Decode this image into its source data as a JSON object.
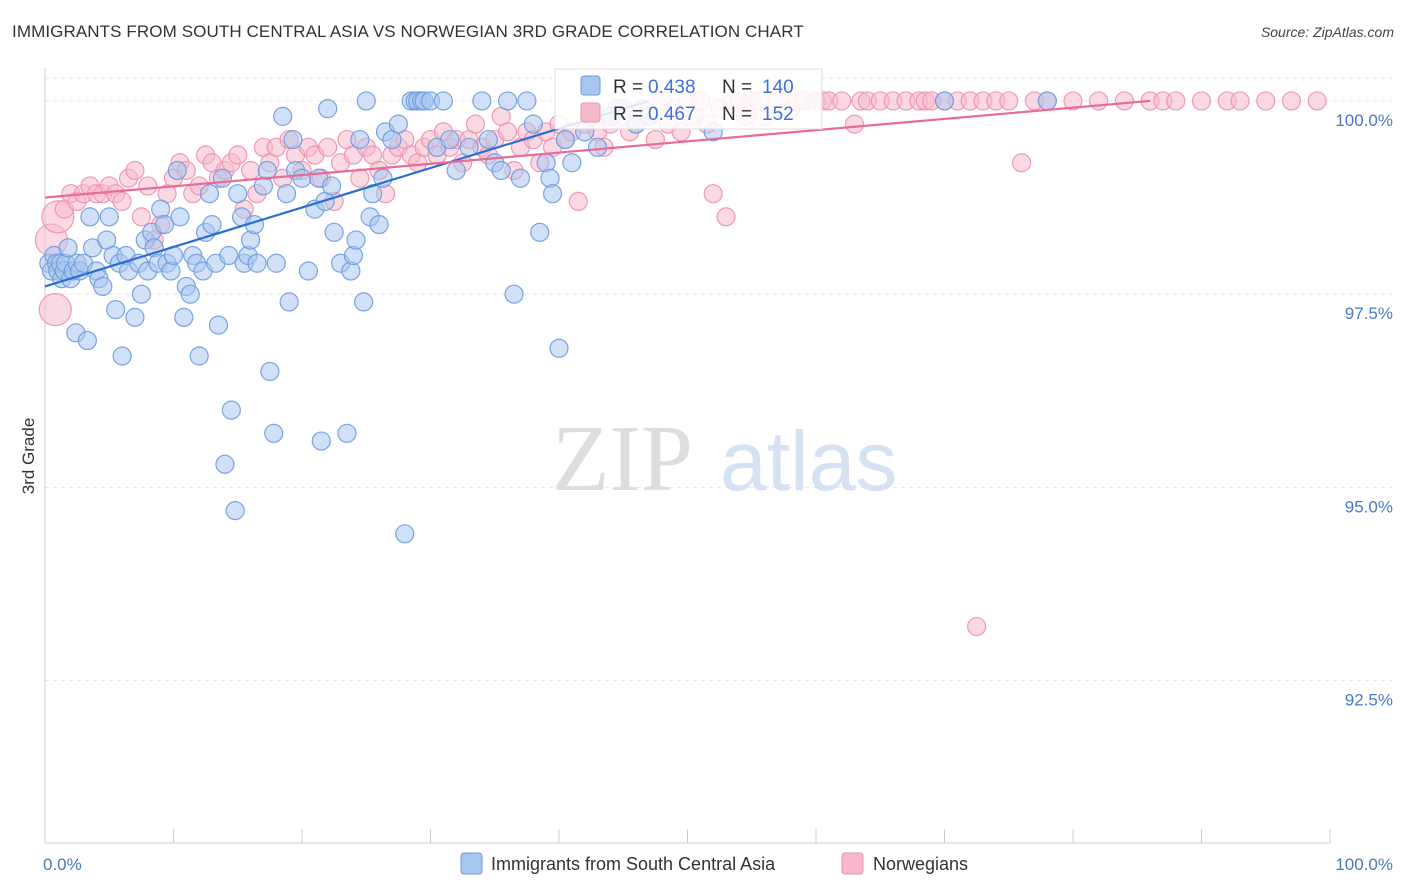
{
  "header": {
    "title": "IMMIGRANTS FROM SOUTH CENTRAL ASIA VS NORWEGIAN 3RD GRADE CORRELATION CHART",
    "source": "Source: ZipAtlas.com"
  },
  "watermark": {
    "zip": "ZIP",
    "atlas": "atlas"
  },
  "colors": {
    "blue_fill": "#a9c6ef",
    "blue_stroke": "#6b9ae0",
    "blue_line": "#2a6fd0",
    "pink_fill": "#f6b9cc",
    "pink_stroke": "#ee8fae",
    "pink_line": "#e86a95",
    "tick_text": "#4a78c6",
    "grid": "#e6e6e6"
  },
  "stats": {
    "r_label": "R =",
    "n_label": "N =",
    "blue": {
      "r": "0.438",
      "n": "140"
    },
    "pink": {
      "r": "0.467",
      "n": "152"
    }
  },
  "chart_data": {
    "type": "scatter",
    "title": "IMMIGRANTS FROM SOUTH CENTRAL ASIA VS NORWEGIAN 3RD GRADE CORRELATION CHART",
    "xlabel": "",
    "ylabel": "3rd Grade",
    "xlim": [
      0,
      100
    ],
    "ylim": [
      90.4,
      100.4
    ],
    "x_tick_labels": [
      {
        "value": 0,
        "label": "0.0%"
      },
      {
        "value": 100,
        "label": "100.0%"
      }
    ],
    "y_ticks": [
      {
        "value": 100.0,
        "label": "100.0%"
      },
      {
        "value": 97.5,
        "label": "97.5%"
      },
      {
        "value": 95.0,
        "label": "95.0%"
      },
      {
        "value": 92.5,
        "label": "92.5%"
      }
    ],
    "grid": true,
    "legend_position": "bottom",
    "series": [
      {
        "name": "Immigrants from South Central Asia",
        "color": "#6b9ae0",
        "trend": {
          "x": [
            0,
            47
          ],
          "y": [
            97.6,
            100.0
          ]
        },
        "points": [
          [
            0.3,
            97.9
          ],
          [
            0.5,
            97.8
          ],
          [
            0.7,
            98.0
          ],
          [
            0.9,
            97.9
          ],
          [
            1.0,
            97.8
          ],
          [
            1.2,
            97.9
          ],
          [
            1.3,
            97.7
          ],
          [
            1.5,
            97.8
          ],
          [
            1.6,
            97.9
          ],
          [
            1.8,
            98.1
          ],
          [
            2.0,
            97.7
          ],
          [
            2.2,
            97.8
          ],
          [
            2.4,
            97.0
          ],
          [
            2.5,
            97.9
          ],
          [
            2.7,
            97.8
          ],
          [
            3.0,
            97.9
          ],
          [
            3.3,
            96.9
          ],
          [
            3.5,
            98.5
          ],
          [
            3.7,
            98.1
          ],
          [
            4.0,
            97.8
          ],
          [
            4.2,
            97.7
          ],
          [
            4.5,
            97.6
          ],
          [
            4.8,
            98.2
          ],
          [
            5.0,
            98.5
          ],
          [
            5.3,
            98.0
          ],
          [
            5.5,
            97.3
          ],
          [
            5.8,
            97.9
          ],
          [
            6.0,
            96.7
          ],
          [
            6.3,
            98.0
          ],
          [
            6.5,
            97.8
          ],
          [
            7.0,
            97.2
          ],
          [
            7.3,
            97.9
          ],
          [
            7.5,
            97.5
          ],
          [
            7.8,
            98.2
          ],
          [
            8.0,
            97.8
          ],
          [
            8.3,
            98.3
          ],
          [
            8.5,
            98.1
          ],
          [
            8.8,
            97.9
          ],
          [
            9.0,
            98.6
          ],
          [
            9.3,
            98.4
          ],
          [
            9.5,
            97.9
          ],
          [
            9.8,
            97.8
          ],
          [
            10.0,
            98.0
          ],
          [
            10.3,
            99.1
          ],
          [
            10.5,
            98.5
          ],
          [
            10.8,
            97.2
          ],
          [
            11.0,
            97.6
          ],
          [
            11.3,
            97.5
          ],
          [
            11.5,
            98.0
          ],
          [
            11.8,
            97.9
          ],
          [
            12.0,
            96.7
          ],
          [
            12.3,
            97.8
          ],
          [
            12.5,
            98.3
          ],
          [
            12.8,
            98.8
          ],
          [
            13.0,
            98.4
          ],
          [
            13.3,
            97.9
          ],
          [
            13.5,
            97.1
          ],
          [
            13.8,
            99.0
          ],
          [
            14.0,
            95.3
          ],
          [
            14.3,
            98.0
          ],
          [
            14.5,
            96.0
          ],
          [
            14.8,
            94.7
          ],
          [
            15.0,
            98.8
          ],
          [
            15.3,
            98.5
          ],
          [
            15.5,
            97.9
          ],
          [
            15.8,
            98.0
          ],
          [
            16.0,
            98.2
          ],
          [
            16.3,
            98.4
          ],
          [
            16.5,
            97.9
          ],
          [
            17.0,
            98.9
          ],
          [
            17.3,
            99.1
          ],
          [
            17.5,
            96.5
          ],
          [
            17.8,
            95.7
          ],
          [
            18.0,
            97.9
          ],
          [
            18.5,
            99.8
          ],
          [
            18.8,
            98.8
          ],
          [
            19.0,
            97.4
          ],
          [
            19.3,
            99.5
          ],
          [
            19.5,
            99.1
          ],
          [
            20.0,
            99.0
          ],
          [
            20.5,
            97.8
          ],
          [
            21.0,
            98.6
          ],
          [
            21.3,
            99.0
          ],
          [
            21.5,
            95.6
          ],
          [
            21.8,
            98.7
          ],
          [
            22.0,
            99.9
          ],
          [
            22.3,
            98.9
          ],
          [
            22.5,
            98.3
          ],
          [
            23.0,
            97.9
          ],
          [
            23.5,
            95.7
          ],
          [
            23.8,
            97.8
          ],
          [
            24.0,
            98.0
          ],
          [
            24.2,
            98.2
          ],
          [
            24.5,
            99.5
          ],
          [
            24.8,
            97.4
          ],
          [
            25.0,
            100.0
          ],
          [
            25.3,
            98.5
          ],
          [
            25.5,
            98.8
          ],
          [
            26.0,
            98.4
          ],
          [
            26.3,
            99.0
          ],
          [
            26.5,
            99.6
          ],
          [
            27.0,
            99.5
          ],
          [
            27.5,
            99.7
          ],
          [
            28.0,
            94.4
          ],
          [
            28.5,
            100.0
          ],
          [
            28.8,
            100.0
          ],
          [
            29.0,
            100.0
          ],
          [
            29.3,
            100.0
          ],
          [
            29.5,
            100.0
          ],
          [
            30.0,
            100.0
          ],
          [
            30.5,
            99.4
          ],
          [
            31.0,
            100.0
          ],
          [
            31.5,
            99.5
          ],
          [
            32.0,
            99.1
          ],
          [
            33.0,
            99.4
          ],
          [
            34.0,
            100.0
          ],
          [
            34.5,
            99.5
          ],
          [
            35.0,
            99.2
          ],
          [
            35.5,
            99.1
          ],
          [
            36.0,
            100.0
          ],
          [
            36.5,
            97.5
          ],
          [
            37.0,
            99.0
          ],
          [
            37.5,
            100.0
          ],
          [
            38.0,
            99.7
          ],
          [
            38.5,
            98.3
          ],
          [
            39.0,
            99.2
          ],
          [
            39.3,
            99.0
          ],
          [
            39.5,
            98.8
          ],
          [
            40.0,
            96.8
          ],
          [
            40.5,
            99.5
          ],
          [
            41.0,
            99.2
          ],
          [
            42.0,
            99.6
          ],
          [
            43.0,
            99.4
          ],
          [
            44.0,
            99.8
          ],
          [
            45.0,
            99.9
          ],
          [
            46.0,
            99.7
          ],
          [
            47.0,
            99.8
          ],
          [
            52.0,
            99.6
          ],
          [
            70.0,
            100.0
          ],
          [
            78.0,
            100.0
          ]
        ]
      },
      {
        "name": "Norwegians",
        "color": "#ee8fae",
        "trend": {
          "x": [
            0,
            86
          ],
          "y": [
            98.75,
            100.0
          ]
        },
        "points": [
          [
            0.5,
            98.2
          ],
          [
            0.8,
            97.3
          ],
          [
            1.0,
            98.5
          ],
          [
            1.5,
            98.6
          ],
          [
            2.0,
            98.8
          ],
          [
            2.5,
            98.7
          ],
          [
            3.0,
            98.8
          ],
          [
            3.5,
            98.9
          ],
          [
            4.0,
            98.8
          ],
          [
            4.5,
            98.8
          ],
          [
            5.0,
            98.9
          ],
          [
            5.5,
            98.8
          ],
          [
            6.0,
            98.7
          ],
          [
            6.5,
            99.0
          ],
          [
            7.0,
            99.1
          ],
          [
            7.5,
            98.5
          ],
          [
            8.0,
            98.9
          ],
          [
            8.5,
            98.2
          ],
          [
            9.0,
            98.4
          ],
          [
            9.5,
            98.8
          ],
          [
            10.0,
            99.0
          ],
          [
            10.5,
            99.2
          ],
          [
            11.0,
            99.1
          ],
          [
            11.5,
            98.8
          ],
          [
            12.0,
            98.9
          ],
          [
            12.5,
            99.3
          ],
          [
            13.0,
            99.2
          ],
          [
            13.5,
            99.0
          ],
          [
            14.0,
            99.1
          ],
          [
            14.5,
            99.2
          ],
          [
            15.0,
            99.3
          ],
          [
            15.5,
            98.6
          ],
          [
            16.0,
            99.1
          ],
          [
            16.5,
            98.8
          ],
          [
            17.0,
            99.4
          ],
          [
            17.5,
            99.2
          ],
          [
            18.0,
            99.4
          ],
          [
            18.5,
            99.0
          ],
          [
            19.0,
            99.5
          ],
          [
            19.5,
            99.3
          ],
          [
            20.0,
            99.1
          ],
          [
            20.5,
            99.4
          ],
          [
            21.0,
            99.3
          ],
          [
            21.5,
            99.0
          ],
          [
            22.0,
            99.4
          ],
          [
            22.5,
            98.7
          ],
          [
            23.0,
            99.2
          ],
          [
            23.5,
            99.5
          ],
          [
            24.0,
            99.3
          ],
          [
            24.5,
            99.0
          ],
          [
            25.0,
            99.4
          ],
          [
            25.5,
            99.3
          ],
          [
            26.0,
            99.1
          ],
          [
            26.5,
            98.8
          ],
          [
            27.0,
            99.3
          ],
          [
            27.5,
            99.4
          ],
          [
            28.0,
            99.5
          ],
          [
            28.5,
            99.3
          ],
          [
            29.0,
            99.2
          ],
          [
            29.5,
            99.4
          ],
          [
            30.0,
            99.5
          ],
          [
            30.5,
            99.3
          ],
          [
            31.0,
            99.6
          ],
          [
            31.5,
            99.4
          ],
          [
            32.0,
            99.5
          ],
          [
            32.5,
            99.2
          ],
          [
            33.0,
            99.5
          ],
          [
            33.5,
            99.7
          ],
          [
            34.0,
            99.4
          ],
          [
            34.5,
            99.3
          ],
          [
            35.0,
            99.5
          ],
          [
            35.5,
            99.8
          ],
          [
            36.0,
            99.6
          ],
          [
            36.5,
            99.1
          ],
          [
            37.0,
            99.4
          ],
          [
            37.5,
            99.6
          ],
          [
            38.0,
            99.5
          ],
          [
            38.5,
            99.2
          ],
          [
            39.0,
            99.6
          ],
          [
            39.5,
            99.4
          ],
          [
            40.0,
            99.7
          ],
          [
            40.5,
            99.5
          ],
          [
            41.0,
            99.6
          ],
          [
            41.5,
            98.7
          ],
          [
            42.0,
            99.7
          ],
          [
            42.5,
            99.8
          ],
          [
            43.0,
            99.6
          ],
          [
            43.5,
            99.4
          ],
          [
            44.0,
            99.7
          ],
          [
            44.5,
            99.9
          ],
          [
            45.0,
            99.8
          ],
          [
            45.5,
            99.6
          ],
          [
            46.0,
            99.7
          ],
          [
            46.5,
            99.9
          ],
          [
            47.0,
            99.8
          ],
          [
            47.5,
            99.5
          ],
          [
            48.0,
            100.0
          ],
          [
            48.5,
            99.7
          ],
          [
            49.0,
            99.9
          ],
          [
            49.5,
            99.6
          ],
          [
            50.0,
            100.0
          ],
          [
            50.5,
            99.8
          ],
          [
            51.0,
            100.0
          ],
          [
            51.5,
            99.7
          ],
          [
            52.0,
            98.8
          ],
          [
            52.5,
            99.9
          ],
          [
            53.0,
            98.5
          ],
          [
            53.5,
            100.0
          ],
          [
            54.0,
            100.0
          ],
          [
            54.5,
            99.8
          ],
          [
            55.0,
            100.0
          ],
          [
            55.5,
            100.0
          ],
          [
            56.0,
            99.8
          ],
          [
            57.0,
            100.0
          ],
          [
            58.0,
            99.9
          ],
          [
            58.5,
            100.0
          ],
          [
            59.0,
            100.0
          ],
          [
            60.0,
            100.0
          ],
          [
            60.5,
            100.0
          ],
          [
            61.0,
            100.0
          ],
          [
            62.0,
            100.0
          ],
          [
            63.0,
            99.7
          ],
          [
            63.5,
            100.0
          ],
          [
            64.0,
            100.0
          ],
          [
            65.0,
            100.0
          ],
          [
            66.0,
            100.0
          ],
          [
            67.0,
            100.0
          ],
          [
            68.0,
            100.0
          ],
          [
            68.5,
            100.0
          ],
          [
            69.0,
            100.0
          ],
          [
            70.0,
            100.0
          ],
          [
            71.0,
            100.0
          ],
          [
            72.0,
            100.0
          ],
          [
            72.5,
            93.2
          ],
          [
            73.0,
            100.0
          ],
          [
            74.0,
            100.0
          ],
          [
            75.0,
            100.0
          ],
          [
            76.0,
            99.2
          ],
          [
            77.0,
            100.0
          ],
          [
            78.0,
            100.0
          ],
          [
            80.0,
            100.0
          ],
          [
            82.0,
            100.0
          ],
          [
            84.0,
            100.0
          ],
          [
            86.0,
            100.0
          ],
          [
            87.0,
            100.0
          ],
          [
            88.0,
            100.0
          ],
          [
            90.0,
            100.0
          ],
          [
            92.0,
            100.0
          ],
          [
            93.0,
            100.0
          ],
          [
            95.0,
            100.0
          ],
          [
            97.0,
            100.0
          ],
          [
            99.0,
            100.0
          ]
        ]
      }
    ]
  }
}
